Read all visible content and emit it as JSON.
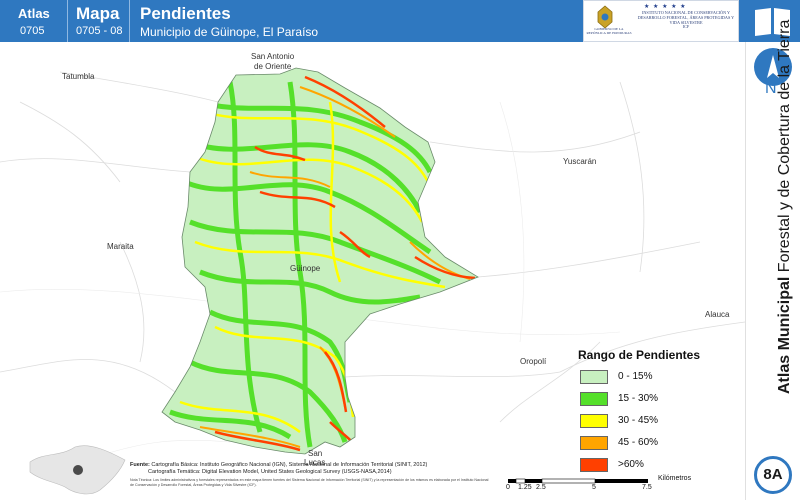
{
  "header": {
    "atlas_label": "Atlas",
    "atlas_number": "0705",
    "mapa_label": "Mapa",
    "mapa_number": "0705 - 08",
    "title": "Pendientes",
    "subtitle": "Municipio de Güinope, El Paraíso"
  },
  "logos": {
    "gov_text": "GOBIERNO DE LA REPÚBLICA DE HONDURAS",
    "icf_text": "INSTITUTO NACIONAL DE CONSERVACIÓN Y DESARROLLO FORESTAL, ÁREAS PROTEGIDAS Y VIDA SILVESTRE",
    "icf_abbr": "ICF",
    "stars": "★ ★ ★ ★ ★"
  },
  "side": {
    "north_label": "N",
    "vertical_title_bold": "Atlas Municipal",
    "vertical_title_rest": " Forestal y de Cobertura de la Tierra",
    "badge": "8A"
  },
  "places": {
    "san_antonio": "San Antonio",
    "de_oriente": "de Oriente",
    "tatumbla": "Tatumbla",
    "yuscaran": "Yuscarán",
    "maraita": "Maraita",
    "guinope": "Güinope",
    "oropoli": "Oropolí",
    "alauca": "Alauca",
    "san": "San",
    "lucas": "Lucas"
  },
  "legend": {
    "title": "Rango de Pendientes",
    "items": [
      {
        "label": "0 - 15%",
        "color": "#c8f0c0"
      },
      {
        "label": "15 - 30%",
        "color": "#55e02a"
      },
      {
        "label": "30 - 45%",
        "color": "#ffff00"
      },
      {
        "label": "45 - 60%",
        "color": "#ffa500"
      },
      {
        "label": ">60%",
        "color": "#ff4000"
      }
    ]
  },
  "footer": {
    "source_label": "Fuente:",
    "source_line1": "Cartografía Básica: Instituto Geográfico Nacional (IGN), Sistema Nacional de Información Territorial (SINIT, 2012)",
    "source_line2": "Cartografía Temática: Digital Elevation Model, United States Geological Survey (USGS-NASA,2014)",
    "note": "Nota Técnica: Los límites administrativos y forestales representados en este mapa tienen fuentes del Sistema Nacional de Información Territorial (SINIT) y la representación de los mismos es elaborada por el Instituto Nacional de Conservación y Desarrollo Forestal, Áreas Protegidas y Vida Silvestre (ICF)."
  },
  "scale": {
    "ticks": [
      "0",
      "1.25",
      "2.5",
      "5",
      "7.5"
    ],
    "unit": "Kilómetros"
  },
  "colors": {
    "header_blue": "#2f78c0",
    "slope_low": "#c8f0c0",
    "slope_mid": "#55e02a",
    "slope_steep": "#ffff00",
    "slope_very": "#ffa500",
    "slope_extreme": "#ff4000"
  }
}
